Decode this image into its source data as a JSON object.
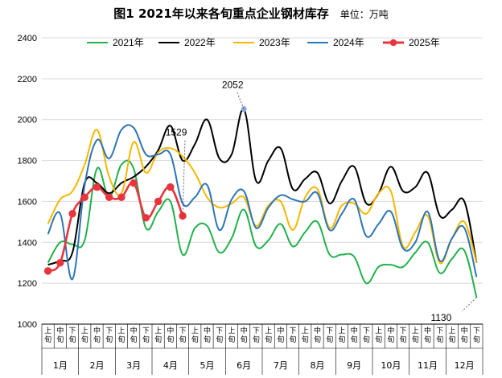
{
  "header": {
    "title": "图1  2021年以来各旬重点企业钢材库存",
    "unit": "单位：万吨"
  },
  "chart_data": {
    "type": "line",
    "title": "图1  2021年以来各旬重点企业钢材库存",
    "unit_label": "单位：万吨",
    "ylim": [
      1000,
      2400
    ],
    "yticks": [
      1000,
      1200,
      1400,
      1600,
      1800,
      2000,
      2200,
      2400
    ],
    "grid": true,
    "legend_position": "top",
    "x_sub_labels": [
      "上旬",
      "中旬",
      "下旬"
    ],
    "months": [
      "1月",
      "2月",
      "3月",
      "4月",
      "5月",
      "6月",
      "7月",
      "8月",
      "9月",
      "10月",
      "11月",
      "12月"
    ],
    "series": [
      {
        "name": "2021年",
        "color": "#22b14c",
        "marker": false,
        "values": [
          1300,
          1400,
          1390,
          1410,
          1760,
          1620,
          1780,
          1760,
          1470,
          1550,
          1600,
          1340,
          1470,
          1480,
          1350,
          1420,
          1560,
          1380,
          1410,
          1490,
          1380,
          1450,
          1500,
          1340,
          1340,
          1330,
          1200,
          1280,
          1290,
          1280,
          1350,
          1400,
          1250,
          1320,
          1360,
          1130
        ]
      },
      {
        "name": "2022年",
        "color": "#000000",
        "marker": false,
        "values": [
          1290,
          1310,
          1350,
          1690,
          1690,
          1640,
          1690,
          1720,
          1770,
          1850,
          1970,
          1800,
          1880,
          2000,
          1810,
          1830,
          2050,
          1700,
          1800,
          1860,
          1660,
          1710,
          1740,
          1590,
          1700,
          1770,
          1590,
          1640,
          1770,
          1650,
          1670,
          1740,
          1530,
          1560,
          1600,
          1300
        ]
      },
      {
        "name": "2023年",
        "color": "#f5b800",
        "marker": false,
        "values": [
          1490,
          1610,
          1650,
          1780,
          1950,
          1720,
          1640,
          1890,
          1740,
          1840,
          1860,
          1820,
          1740,
          1620,
          1570,
          1590,
          1620,
          1480,
          1580,
          1600,
          1460,
          1620,
          1660,
          1470,
          1580,
          1590,
          1540,
          1640,
          1650,
          1380,
          1450,
          1530,
          1300,
          1420,
          1500,
          1300
        ]
      },
      {
        "name": "2024年",
        "color": "#2e75b6",
        "marker": false,
        "values": [
          1440,
          1540,
          1220,
          1680,
          1900,
          1810,
          1950,
          1960,
          1830,
          1830,
          1830,
          1590,
          1620,
          1680,
          1460,
          1610,
          1650,
          1470,
          1570,
          1630,
          1610,
          1600,
          1640,
          1460,
          1540,
          1610,
          1430,
          1490,
          1550,
          1370,
          1400,
          1550,
          1310,
          1420,
          1470,
          1230
        ]
      },
      {
        "name": "2025年",
        "color": "#e8343c",
        "marker": true,
        "values": [
          1260,
          1300,
          1540,
          1620,
          1670,
          1620,
          1620,
          1690,
          1520,
          1600,
          1670,
          1529
        ]
      }
    ],
    "annotations": [
      {
        "text": "1529",
        "series": "2025年",
        "index": 11,
        "value": 1529
      },
      {
        "text": "2052",
        "series": "2022年",
        "index": 16,
        "value": 2052
      },
      {
        "text": "1130",
        "series": "2021年",
        "index": 35,
        "value": 1130
      }
    ]
  }
}
